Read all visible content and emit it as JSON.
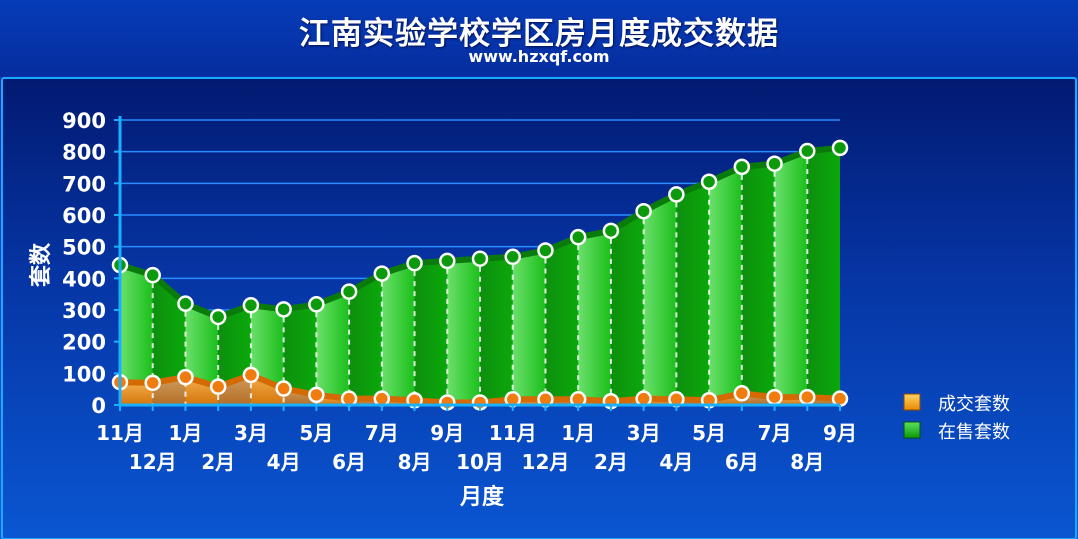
{
  "title": "江南实验学校学区房月度成交数据",
  "subtitle": "www.hzxqf.com",
  "chart_data": {
    "type": "area",
    "xlabel": "月度",
    "ylabel": "套数",
    "ylim": [
      0,
      900
    ],
    "yticks": [
      0,
      100,
      200,
      300,
      400,
      500,
      600,
      700,
      800,
      900
    ],
    "categories": [
      "11月",
      "12月",
      "1月",
      "2月",
      "3月",
      "4月",
      "5月",
      "6月",
      "7月",
      "8月",
      "9月",
      "10月",
      "11月",
      "12月",
      "1月",
      "2月",
      "3月",
      "4月",
      "5月",
      "6月",
      "7月",
      "8月",
      "9月"
    ],
    "series": [
      {
        "name": "成交套数",
        "color": "#ff9a1a",
        "values": [
          72,
          70,
          88,
          58,
          95,
          52,
          32,
          20,
          20,
          15,
          8,
          8,
          18,
          18,
          18,
          12,
          20,
          18,
          15,
          37,
          25,
          25,
          20
        ]
      },
      {
        "name": "在售套数",
        "color": "#13b413",
        "values": [
          442,
          410,
          320,
          278,
          315,
          302,
          318,
          358,
          415,
          448,
          455,
          462,
          468,
          488,
          530,
          550,
          612,
          665,
          705,
          752,
          762,
          802,
          812
        ]
      }
    ],
    "legend": "right",
    "grid": true
  }
}
